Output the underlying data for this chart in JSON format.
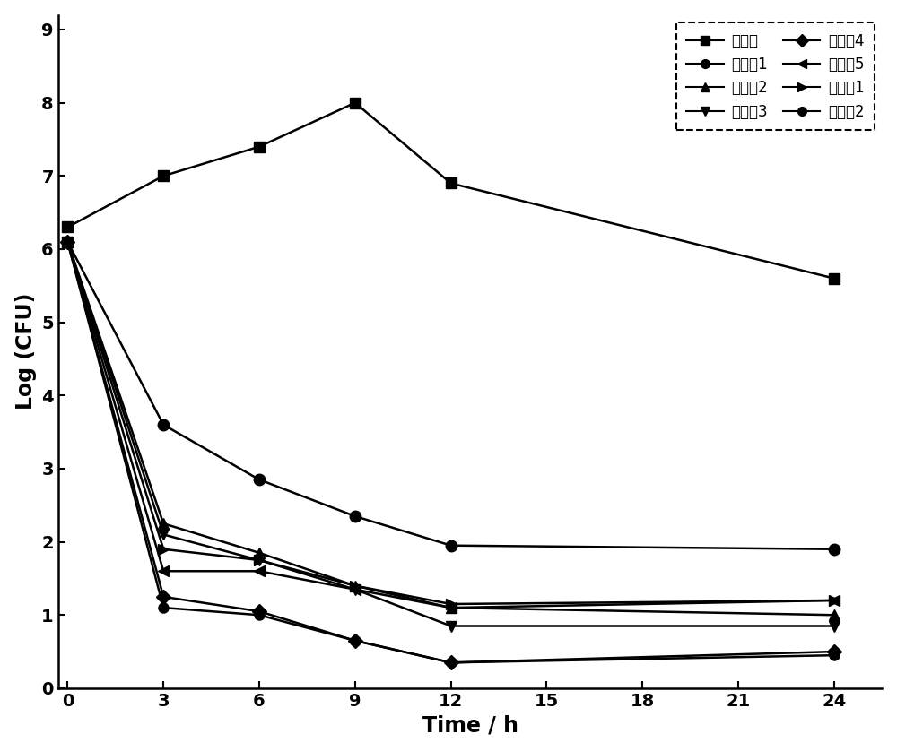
{
  "title": "",
  "xlabel": "Time / h",
  "ylabel": "Log (CFU)",
  "xlim": [
    -0.3,
    25.5
  ],
  "ylim": [
    0,
    9.2
  ],
  "xticks": [
    0,
    3,
    6,
    9,
    12,
    15,
    18,
    21,
    24
  ],
  "yticks": [
    0,
    1,
    2,
    3,
    4,
    5,
    6,
    7,
    8,
    9
  ],
  "series": [
    {
      "label": "空白组",
      "x": [
        0,
        3,
        6,
        9,
        12,
        24
      ],
      "y": [
        6.3,
        7.0,
        7.4,
        8.0,
        6.9,
        5.6
      ],
      "marker": "s",
      "linewidth": 1.8,
      "markersize": 9
    },
    {
      "label": "实施例1",
      "x": [
        0,
        3,
        6,
        9,
        12,
        24
      ],
      "y": [
        6.1,
        3.6,
        2.85,
        2.35,
        1.95,
        1.9
      ],
      "marker": "o",
      "linewidth": 1.8,
      "markersize": 9
    },
    {
      "label": "实施例2",
      "x": [
        0,
        3,
        6,
        9,
        12,
        24
      ],
      "y": [
        6.1,
        2.25,
        1.85,
        1.4,
        1.1,
        1.0
      ],
      "marker": "^",
      "linewidth": 1.8,
      "markersize": 9
    },
    {
      "label": "实施例3",
      "x": [
        0,
        3,
        6,
        9,
        12,
        24
      ],
      "y": [
        6.1,
        2.1,
        1.75,
        1.35,
        0.85,
        0.85
      ],
      "marker": "v",
      "linewidth": 1.8,
      "markersize": 9
    },
    {
      "label": "实施例4",
      "x": [
        0,
        3,
        6,
        9,
        12,
        24
      ],
      "y": [
        6.1,
        1.25,
        1.05,
        0.65,
        0.35,
        0.5
      ],
      "marker": "D",
      "linewidth": 1.8,
      "markersize": 8
    },
    {
      "label": "实施例5",
      "x": [
        0,
        3,
        6,
        9,
        12,
        24
      ],
      "y": [
        6.1,
        1.6,
        1.6,
        1.35,
        1.1,
        1.2
      ],
      "marker": "<",
      "linewidth": 1.8,
      "markersize": 9
    },
    {
      "label": "对比例1",
      "x": [
        0,
        3,
        6,
        9,
        12,
        24
      ],
      "y": [
        6.1,
        1.9,
        1.75,
        1.4,
        1.15,
        1.2
      ],
      "marker": ">",
      "linewidth": 1.8,
      "markersize": 9
    },
    {
      "label": "对比例2",
      "x": [
        0,
        3,
        6,
        9,
        12,
        24
      ],
      "y": [
        6.1,
        1.1,
        1.0,
        0.65,
        0.35,
        0.45
      ],
      "marker": "o",
      "linewidth": 1.8,
      "markersize": 8
    }
  ],
  "background_color": "#ffffff"
}
